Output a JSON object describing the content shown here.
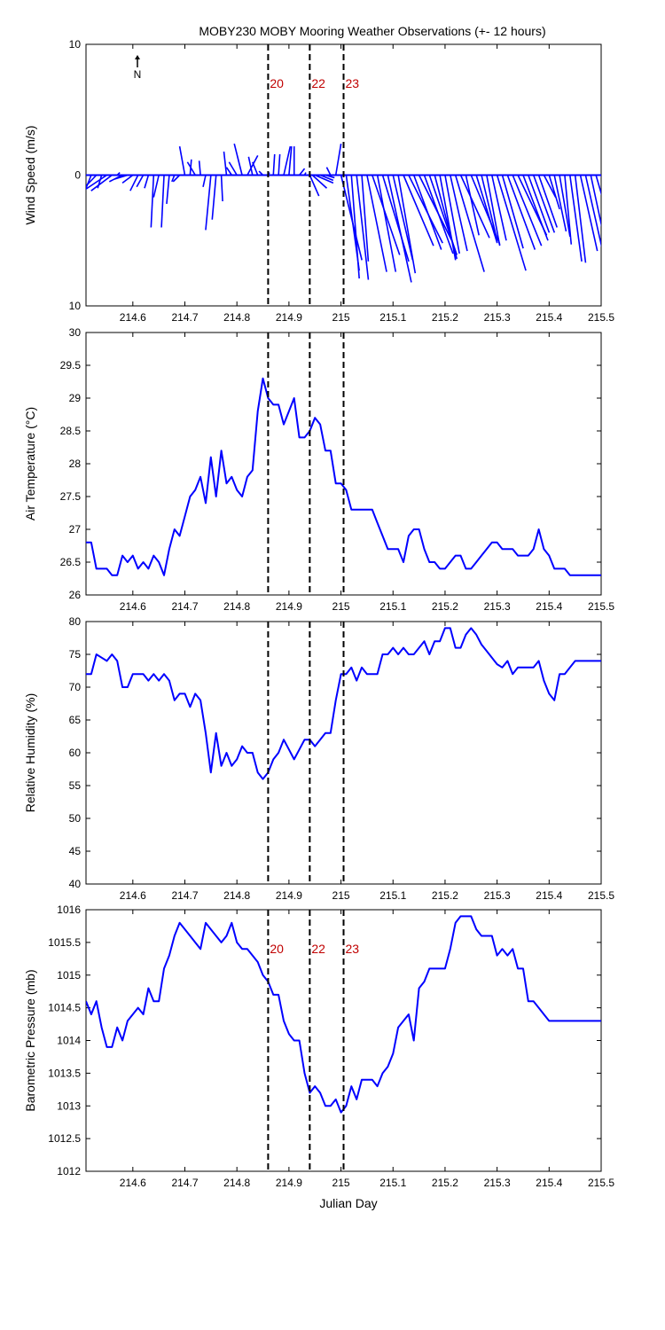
{
  "title": "MOBY230 MOBY Mooring Weather Observations (+- 12 hours)",
  "colors": {
    "series": "#0000ff",
    "marker": "#c00000",
    "axis": "#000000"
  },
  "north_label": "N",
  "x_axis": {
    "label": "Julian Day",
    "lim": [
      214.51,
      215.5
    ],
    "ticks": [
      214.6,
      214.7,
      214.8,
      214.9,
      215,
      215.1,
      215.2,
      215.3,
      215.4,
      215.5
    ],
    "tick_labels": [
      "214.6",
      "214.7",
      "214.8",
      "214.9",
      "215",
      "215.1",
      "215.2",
      "215.3",
      "215.4",
      "215.5"
    ]
  },
  "markers": [
    {
      "label": "20",
      "x": 214.86
    },
    {
      "label": "22",
      "x": 214.94
    },
    {
      "label": "23",
      "x": 215.005
    }
  ],
  "chart_data": [
    {
      "type": "line",
      "subtype": "wind-vector",
      "ylabel": "Wind Speed (m/s)",
      "ylim": [
        -10,
        10
      ],
      "yticks": [
        10,
        0,
        -10
      ],
      "ytick_labels": [
        "10",
        "0",
        "10"
      ],
      "show_marker_labels": true,
      "vectors": [
        [
          214.51,
          -3.0,
          -2.6
        ],
        [
          214.52,
          -1.5,
          -3.8
        ],
        [
          214.53,
          -2.3,
          -2.4
        ],
        [
          214.54,
          -0.3,
          -1.0
        ],
        [
          214.55,
          -3.0,
          -2.0
        ],
        [
          214.56,
          -1.6,
          -1.2
        ],
        [
          214.57,
          0.2,
          0.2
        ],
        [
          214.58,
          -1.0,
          -0.5
        ],
        [
          214.59,
          -1.0,
          -0.3
        ],
        [
          214.6,
          -0.8,
          -0.6
        ],
        [
          214.61,
          -0.6,
          -1.2
        ],
        [
          214.62,
          -0.5,
          -0.9
        ],
        [
          214.63,
          -0.3,
          -1.0
        ],
        [
          214.64,
          -0.2,
          -4.0
        ],
        [
          214.65,
          -0.4,
          -1.7
        ],
        [
          214.66,
          -0.2,
          -4.0
        ],
        [
          214.67,
          -0.2,
          -2.2
        ],
        [
          214.68,
          -0.2,
          -0.5
        ],
        [
          214.69,
          -0.5,
          -0.5
        ],
        [
          214.7,
          -0.4,
          2.2
        ],
        [
          214.71,
          0.1,
          1.2
        ],
        [
          214.72,
          -0.6,
          1.0
        ],
        [
          214.73,
          -0.1,
          1.1
        ],
        [
          214.74,
          -0.2,
          -0.9
        ],
        [
          214.75,
          -0.4,
          -4.2
        ],
        [
          214.76,
          -0.3,
          -3.4
        ],
        [
          214.77,
          0.1,
          -2.0
        ],
        [
          214.78,
          -0.2,
          1.8
        ],
        [
          214.79,
          -0.4,
          0.6
        ],
        [
          214.8,
          -0.6,
          1.0
        ],
        [
          214.81,
          -0.6,
          2.4
        ],
        [
          214.82,
          0.8,
          1.5
        ],
        [
          214.83,
          -0.3,
          1.4
        ],
        [
          214.84,
          -0.4,
          1.0
        ],
        [
          214.85,
          -0.3,
          0.3
        ],
        [
          214.86,
          0.1,
          0.2
        ],
        [
          214.87,
          0.1,
          1.6
        ],
        [
          214.88,
          0.1,
          1.6
        ],
        [
          214.89,
          0.5,
          2.2
        ],
        [
          214.9,
          0.2,
          2.2
        ],
        [
          214.91,
          0.0,
          2.2
        ],
        [
          214.92,
          0.4,
          0.5
        ],
        [
          214.93,
          0.1,
          0.2
        ],
        [
          214.94,
          0.7,
          -1.6
        ],
        [
          214.945,
          1.1,
          -1.0
        ],
        [
          214.95,
          1.4,
          -0.6
        ],
        [
          214.96,
          1.0,
          -0.4
        ],
        [
          214.97,
          0.7,
          -0.2
        ],
        [
          214.98,
          -0.3,
          0.6
        ],
        [
          214.99,
          0.4,
          2.4
        ],
        [
          215.0,
          1.6,
          -6.5
        ],
        [
          215.01,
          1.0,
          -7.3
        ],
        [
          215.02,
          0.6,
          -7.9
        ],
        [
          215.03,
          0.9,
          -8.0
        ],
        [
          215.04,
          0.5,
          -6.6
        ],
        [
          215.05,
          1.5,
          -7.4
        ],
        [
          215.06,
          2.1,
          -6.1
        ],
        [
          215.07,
          1.4,
          -7.4
        ],
        [
          215.08,
          2.0,
          -6.6
        ],
        [
          215.09,
          1.8,
          -8.2
        ],
        [
          215.1,
          1.5,
          -6.5
        ],
        [
          215.11,
          1.3,
          -7.5
        ],
        [
          215.12,
          2.3,
          -5.4
        ],
        [
          215.13,
          2.6,
          -5.2
        ],
        [
          215.14,
          2.1,
          -5.7
        ],
        [
          215.15,
          2.5,
          -5.0
        ],
        [
          215.16,
          2.2,
          -6.0
        ],
        [
          215.17,
          2.1,
          -6.1
        ],
        [
          215.18,
          1.7,
          -6.4
        ],
        [
          215.19,
          1.2,
          -6.5
        ],
        [
          215.2,
          1.1,
          -6.0
        ],
        [
          215.21,
          1.3,
          -5.8
        ],
        [
          215.22,
          2.2,
          -7.4
        ],
        [
          215.23,
          2.2,
          -4.8
        ],
        [
          215.24,
          1.0,
          -4.6
        ],
        [
          215.25,
          2.2,
          -5.3
        ],
        [
          215.26,
          1.6,
          -5.2
        ],
        [
          215.27,
          1.2,
          -5.0
        ],
        [
          215.28,
          1.0,
          -5.4
        ],
        [
          215.29,
          1.1,
          -5.0
        ],
        [
          215.3,
          2.2,
          -7.3
        ],
        [
          215.31,
          1.6,
          -5.6
        ],
        [
          215.32,
          2.1,
          -5.7
        ],
        [
          215.33,
          2.2,
          -5.4
        ],
        [
          215.34,
          2.2,
          -4.6
        ],
        [
          215.35,
          1.9,
          -5.0
        ],
        [
          215.36,
          1.6,
          -4.4
        ],
        [
          215.37,
          1.6,
          -4.4
        ],
        [
          215.38,
          1.4,
          -4.0
        ],
        [
          215.39,
          0.9,
          -1.7
        ],
        [
          215.4,
          0.8,
          -2.6
        ],
        [
          215.41,
          0.9,
          -4.3
        ],
        [
          215.42,
          0.8,
          -4.7
        ],
        [
          215.43,
          0.5,
          -5.3
        ],
        [
          215.44,
          0.9,
          -6.6
        ],
        [
          215.45,
          0.8,
          -6.7
        ],
        [
          215.46,
          1.3,
          -5.8
        ],
        [
          215.47,
          1.4,
          -6.2
        ],
        [
          215.48,
          1.2,
          -5.6
        ],
        [
          215.49,
          1.1,
          -3.8
        ],
        [
          215.5,
          0.8,
          -2.6
        ]
      ]
    },
    {
      "type": "line",
      "ylabel": "Air Temperature (°C)",
      "ylim": [
        26,
        30
      ],
      "yticks": [
        26,
        26.5,
        27,
        27.5,
        28,
        28.5,
        29,
        29.5,
        30
      ],
      "ytick_labels": [
        "26",
        "26.5",
        "27",
        "27.5",
        "28",
        "28.5",
        "29",
        "29.5",
        "30"
      ],
      "show_marker_labels": false,
      "x": [
        214.51,
        214.52,
        214.53,
        214.54,
        214.55,
        214.56,
        214.57,
        214.58,
        214.59,
        214.6,
        214.61,
        214.62,
        214.63,
        214.64,
        214.65,
        214.66,
        214.67,
        214.68,
        214.69,
        214.7,
        214.71,
        214.72,
        214.73,
        214.74,
        214.75,
        214.76,
        214.77,
        214.78,
        214.79,
        214.8,
        214.81,
        214.82,
        214.83,
        214.84,
        214.85,
        214.86,
        214.87,
        214.88,
        214.89,
        214.9,
        214.91,
        214.92,
        214.93,
        214.94,
        214.95,
        214.96,
        214.97,
        214.98,
        214.99,
        215.0,
        215.01,
        215.02,
        215.03,
        215.04,
        215.05,
        215.06,
        215.07,
        215.08,
        215.09,
        215.1,
        215.11,
        215.12,
        215.13,
        215.14,
        215.15,
        215.16,
        215.17,
        215.18,
        215.19,
        215.2,
        215.21,
        215.22,
        215.23,
        215.24,
        215.25,
        215.26,
        215.27,
        215.28,
        215.29,
        215.3,
        215.31,
        215.32,
        215.33,
        215.34,
        215.35,
        215.36,
        215.37,
        215.38,
        215.39,
        215.4,
        215.41,
        215.42,
        215.43,
        215.44,
        215.45,
        215.46,
        215.47,
        215.48,
        215.49,
        215.5
      ],
      "y": [
        26.8,
        26.8,
        26.4,
        26.4,
        26.4,
        26.3,
        26.3,
        26.6,
        26.5,
        26.6,
        26.4,
        26.5,
        26.4,
        26.6,
        26.5,
        26.3,
        26.7,
        27.0,
        26.9,
        27.2,
        27.5,
        27.6,
        27.8,
        27.4,
        28.1,
        27.5,
        28.2,
        27.7,
        27.8,
        27.6,
        27.5,
        27.8,
        27.9,
        28.8,
        29.3,
        29.0,
        28.9,
        28.9,
        28.6,
        28.8,
        29.0,
        28.4,
        28.4,
        28.5,
        28.7,
        28.6,
        28.2,
        28.2,
        27.7,
        27.7,
        27.6,
        27.3,
        27.3,
        27.3,
        27.3,
        27.3,
        27.1,
        26.9,
        26.7,
        26.7,
        26.7,
        26.5,
        26.9,
        27.0,
        27.0,
        26.7,
        26.5,
        26.5,
        26.4,
        26.4,
        26.5,
        26.6,
        26.6,
        26.4,
        26.4,
        26.5,
        26.6,
        26.7,
        26.8,
        26.8,
        26.7,
        26.7,
        26.7,
        26.6,
        26.6,
        26.6,
        26.7,
        27.0,
        26.7,
        26.6,
        26.4,
        26.4,
        26.4,
        26.3,
        26.3,
        26.3,
        26.3,
        26.3,
        26.3,
        26.3
      ]
    },
    {
      "type": "line",
      "ylabel": "Relative Humidity (%)",
      "ylim": [
        40,
        80
      ],
      "yticks": [
        40,
        45,
        50,
        55,
        60,
        65,
        70,
        75,
        80
      ],
      "ytick_labels": [
        "40",
        "45",
        "50",
        "55",
        "60",
        "65",
        "70",
        "75",
        "80"
      ],
      "show_marker_labels": false,
      "x": [
        214.51,
        214.52,
        214.53,
        214.54,
        214.55,
        214.56,
        214.57,
        214.58,
        214.59,
        214.6,
        214.61,
        214.62,
        214.63,
        214.64,
        214.65,
        214.66,
        214.67,
        214.68,
        214.69,
        214.7,
        214.71,
        214.72,
        214.73,
        214.74,
        214.75,
        214.76,
        214.77,
        214.78,
        214.79,
        214.8,
        214.81,
        214.82,
        214.83,
        214.84,
        214.85,
        214.86,
        214.87,
        214.88,
        214.89,
        214.9,
        214.91,
        214.92,
        214.93,
        214.94,
        214.95,
        214.96,
        214.97,
        214.98,
        214.99,
        215.0,
        215.01,
        215.02,
        215.03,
        215.04,
        215.05,
        215.06,
        215.07,
        215.08,
        215.09,
        215.1,
        215.11,
        215.12,
        215.13,
        215.14,
        215.15,
        215.16,
        215.17,
        215.18,
        215.19,
        215.2,
        215.21,
        215.22,
        215.23,
        215.24,
        215.25,
        215.26,
        215.27,
        215.28,
        215.29,
        215.3,
        215.31,
        215.32,
        215.33,
        215.34,
        215.35,
        215.36,
        215.37,
        215.38,
        215.39,
        215.4,
        215.41,
        215.42,
        215.43,
        215.44,
        215.45,
        215.46,
        215.47,
        215.48,
        215.49,
        215.5
      ],
      "y": [
        72,
        72,
        75,
        74.5,
        74,
        75,
        74,
        70,
        70,
        72,
        72,
        72,
        71,
        72,
        71,
        72,
        71,
        68,
        69,
        69,
        67,
        69,
        68,
        63,
        57,
        63,
        58,
        60,
        58,
        59,
        61,
        60,
        60,
        57,
        56,
        57,
        59,
        60,
        62,
        60.5,
        59,
        60.5,
        62,
        62,
        61,
        62,
        63,
        63,
        68,
        72,
        72,
        73,
        71,
        73,
        72,
        72,
        72,
        75,
        75,
        76,
        75,
        76,
        75,
        75,
        76,
        77,
        75,
        77,
        77,
        79,
        79,
        76,
        76,
        78,
        79,
        78,
        76.5,
        75.5,
        74.5,
        73.5,
        73,
        74,
        72,
        73,
        73,
        73,
        73,
        74,
        71,
        69,
        68,
        72,
        72,
        73,
        74,
        74,
        74,
        74,
        74,
        74
      ]
    },
    {
      "type": "line",
      "ylabel": "Barometric Pressure (mb)",
      "ylim": [
        1012,
        1016
      ],
      "yticks": [
        1012,
        1012.5,
        1013,
        1013.5,
        1014,
        1014.5,
        1015,
        1015.5,
        1016
      ],
      "ytick_labels": [
        "1012",
        "1012.5",
        "1013",
        "1013.5",
        "1014",
        "1014.5",
        "1015",
        "1015.5",
        "1016"
      ],
      "show_marker_labels": true,
      "x": [
        214.51,
        214.52,
        214.53,
        214.54,
        214.55,
        214.56,
        214.57,
        214.58,
        214.59,
        214.6,
        214.61,
        214.62,
        214.63,
        214.64,
        214.65,
        214.66,
        214.67,
        214.68,
        214.69,
        214.7,
        214.71,
        214.72,
        214.73,
        214.74,
        214.75,
        214.76,
        214.77,
        214.78,
        214.79,
        214.8,
        214.81,
        214.82,
        214.83,
        214.84,
        214.85,
        214.86,
        214.87,
        214.88,
        214.89,
        214.9,
        214.91,
        214.92,
        214.93,
        214.94,
        214.95,
        214.96,
        214.97,
        214.98,
        214.99,
        215.0,
        215.01,
        215.02,
        215.03,
        215.04,
        215.05,
        215.06,
        215.07,
        215.08,
        215.09,
        215.1,
        215.11,
        215.12,
        215.13,
        215.14,
        215.15,
        215.16,
        215.17,
        215.18,
        215.19,
        215.2,
        215.21,
        215.22,
        215.23,
        215.24,
        215.25,
        215.26,
        215.27,
        215.28,
        215.29,
        215.3,
        215.31,
        215.32,
        215.33,
        215.34,
        215.35,
        215.36,
        215.37,
        215.38,
        215.39,
        215.4,
        215.41,
        215.42,
        215.43,
        215.44,
        215.45,
        215.46,
        215.47,
        215.48,
        215.49,
        215.5
      ],
      "y": [
        1014.6,
        1014.4,
        1014.6,
        1014.2,
        1013.9,
        1013.9,
        1014.2,
        1014.0,
        1014.3,
        1014.4,
        1014.5,
        1014.4,
        1014.8,
        1014.6,
        1014.6,
        1015.1,
        1015.3,
        1015.6,
        1015.8,
        1015.7,
        1015.6,
        1015.5,
        1015.4,
        1015.8,
        1015.7,
        1015.6,
        1015.5,
        1015.6,
        1015.8,
        1015.5,
        1015.4,
        1015.4,
        1015.3,
        1015.2,
        1015.0,
        1014.9,
        1014.7,
        1014.7,
        1014.3,
        1014.1,
        1014.0,
        1014.0,
        1013.5,
        1013.2,
        1013.3,
        1013.2,
        1013.0,
        1013.0,
        1013.1,
        1012.9,
        1013.0,
        1013.3,
        1013.1,
        1013.4,
        1013.4,
        1013.4,
        1013.3,
        1013.5,
        1013.6,
        1013.8,
        1014.2,
        1014.3,
        1014.4,
        1014.0,
        1014.8,
        1014.9,
        1015.1,
        1015.1,
        1015.1,
        1015.1,
        1015.4,
        1015.8,
        1015.9,
        1015.9,
        1015.9,
        1015.7,
        1015.6,
        1015.6,
        1015.6,
        1015.3,
        1015.4,
        1015.3,
        1015.4,
        1015.1,
        1015.1,
        1014.6,
        1014.6,
        1014.5,
        1014.4,
        1014.3,
        1014.3,
        1014.3,
        1014.3,
        1014.3,
        1014.3,
        1014.3,
        1014.3,
        1014.3,
        1014.3,
        1014.3
      ]
    }
  ]
}
